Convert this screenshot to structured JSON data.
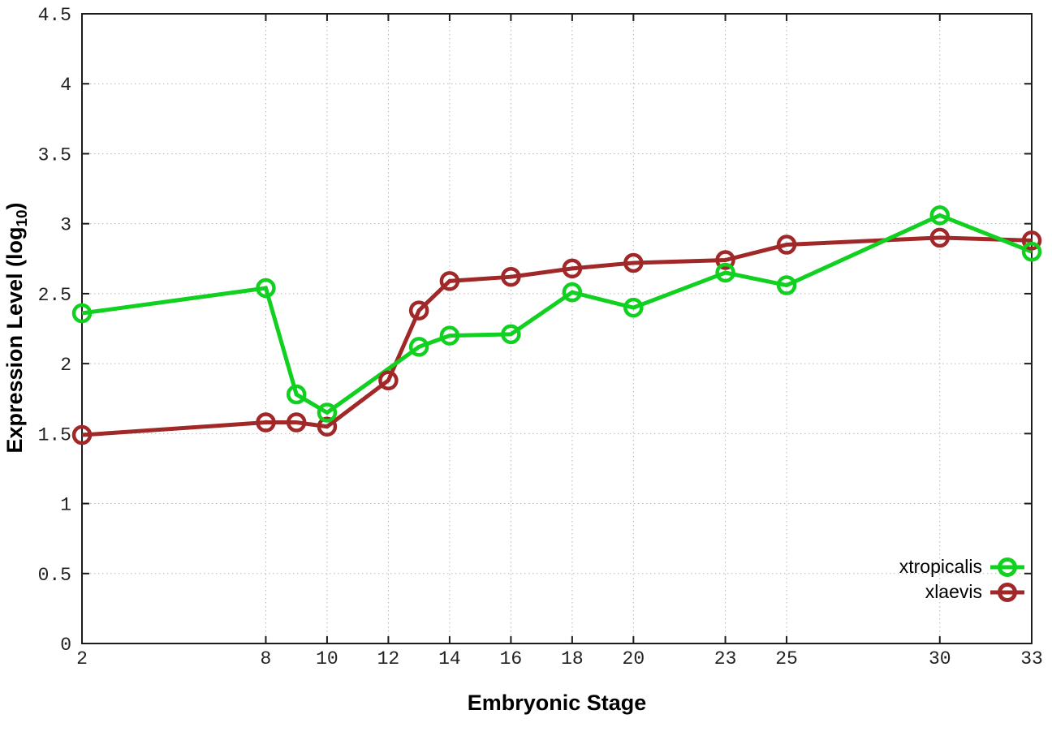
{
  "figure": {
    "ylabel_prefix": "Expression Level (log",
    "ylabel_sub": "10",
    "ylabel_suffix": ")",
    "xlabel": "Embryonic Stage"
  },
  "chart_data": {
    "type": "line",
    "title": "",
    "xlabel": "Embryonic Stage",
    "ylabel": "Expression Level (log10)",
    "xlim": [
      2,
      33
    ],
    "ylim": [
      0,
      4.5
    ],
    "xticks": [
      2,
      8,
      10,
      12,
      14,
      16,
      18,
      20,
      23,
      25,
      30,
      33
    ],
    "yticks": [
      0,
      0.5,
      1,
      1.5,
      2,
      2.5,
      3,
      3.5,
      4,
      4.5
    ],
    "grid": true,
    "grid_style": "dotted",
    "legend_position": "bottom-right",
    "marker": "open-circle",
    "series": [
      {
        "name": "xtropicalis",
        "color": "#10d020",
        "x": [
          2,
          8,
          9,
          10,
          13,
          14,
          16,
          18,
          20,
          23,
          25,
          30,
          33
        ],
        "y": [
          2.36,
          2.54,
          1.78,
          1.65,
          2.12,
          2.2,
          2.21,
          2.51,
          2.4,
          2.65,
          2.56,
          3.06,
          2.8
        ]
      },
      {
        "name": "xlaevis",
        "color": "#a02828",
        "x": [
          2,
          8,
          9,
          10,
          12,
          13,
          14,
          16,
          18,
          20,
          23,
          25,
          30,
          33
        ],
        "y": [
          1.49,
          1.58,
          1.58,
          1.55,
          1.88,
          2.38,
          2.59,
          2.62,
          2.68,
          2.72,
          2.74,
          2.85,
          2.9,
          2.88
        ]
      }
    ]
  }
}
